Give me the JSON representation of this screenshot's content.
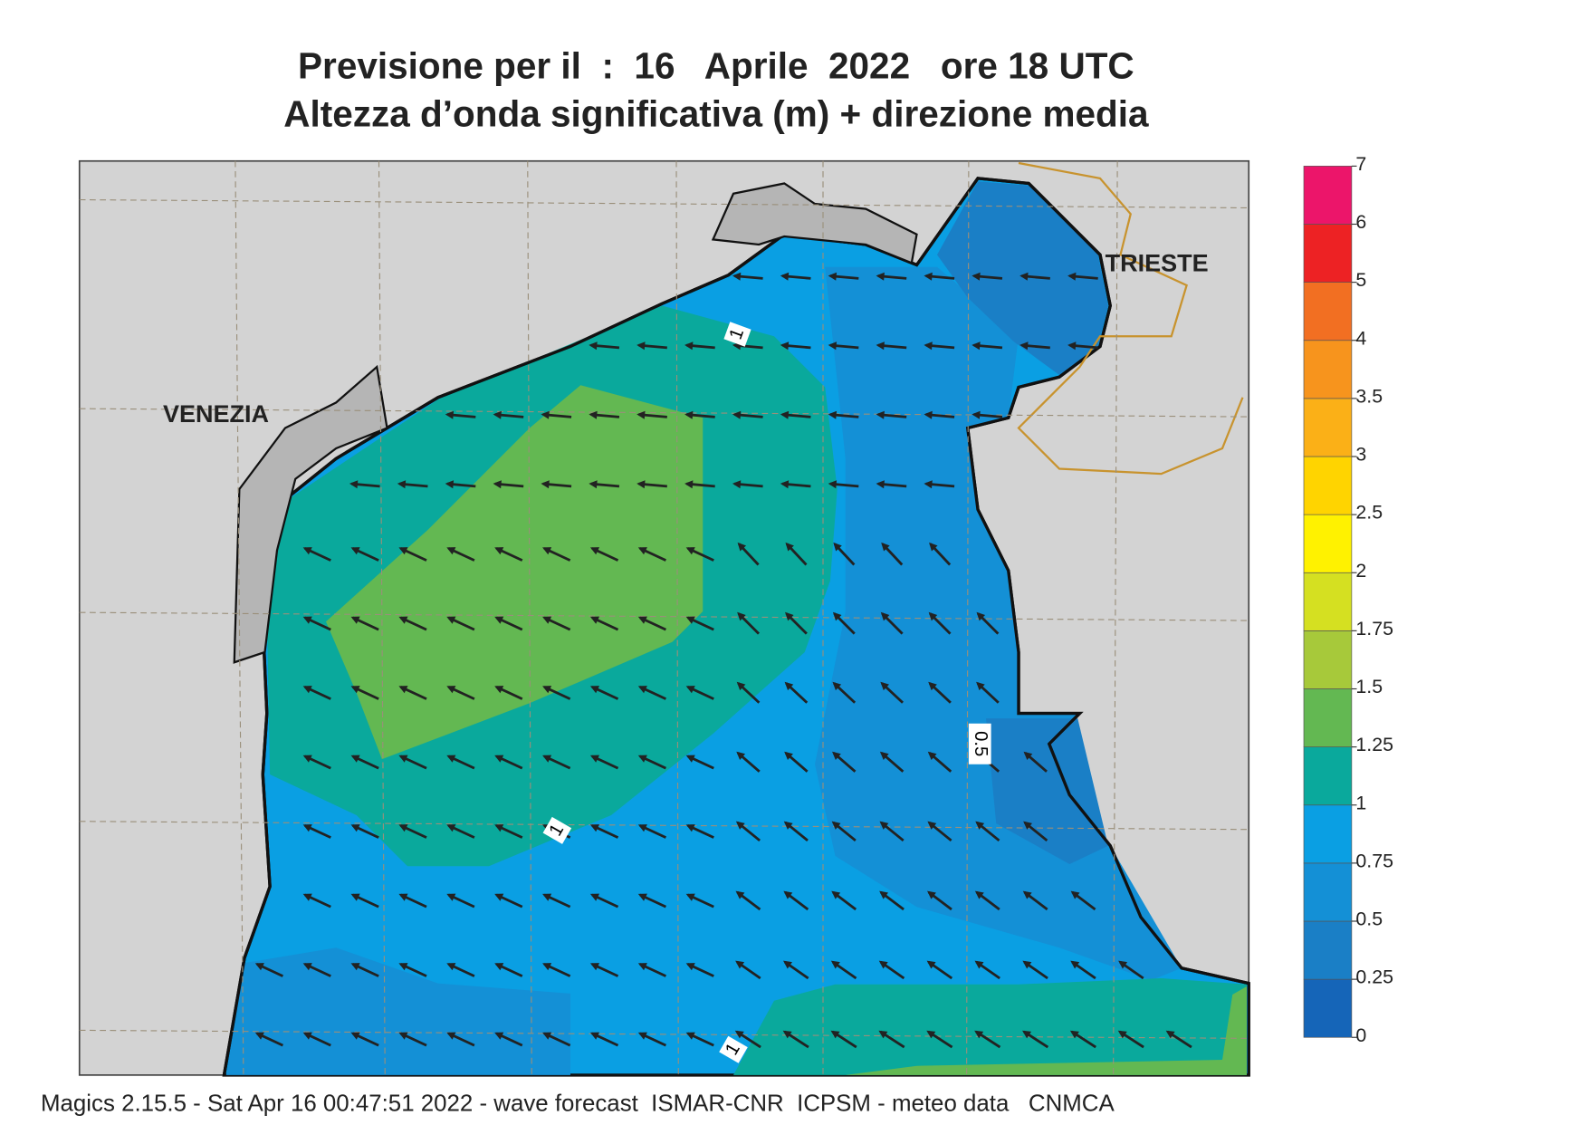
{
  "header": {
    "title": "Previsione per il  :  16   Aprile  2022   ore 18 UTC",
    "subtitle": "Altezza d’onda significativa (m) + direzione media"
  },
  "map": {
    "places": [
      "VENEZIA",
      "TRIESTE"
    ],
    "contour_labels": [
      1,
      1,
      1,
      0.5
    ]
  },
  "colorbar": {
    "levels": [
      0,
      0.25,
      0.5,
      0.75,
      1,
      1.25,
      1.5,
      1.75,
      2,
      2.5,
      3,
      3.5,
      4,
      5,
      6,
      7
    ],
    "colors": [
      "#1565b8",
      "#1a7fc6",
      "#1490d6",
      "#0a9fe3",
      "#0aa99c",
      "#63b852",
      "#a7c93a",
      "#d5e021",
      "#fff200",
      "#ffd400",
      "#fbb017",
      "#f7941d",
      "#f26f22",
      "#ed2224",
      "#ec156a"
    ]
  },
  "footer": "Magics 2.15.5 - Sat Apr 16 00:47:51 2022 - wave forecast  ISMAR-CNR  ICPSM - meteo data   CNMCA"
}
